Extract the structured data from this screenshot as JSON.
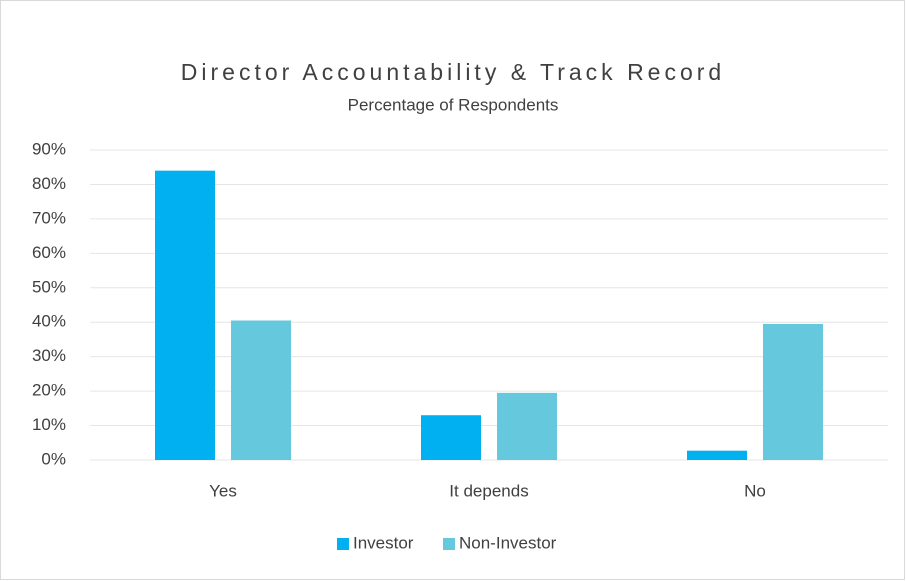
{
  "chart_data": {
    "type": "bar",
    "title": "Director Accountability & Track Record",
    "subtitle": "Percentage of Respondents",
    "categories": [
      "Yes",
      "It depends",
      "No"
    ],
    "series": [
      {
        "name": "Investor",
        "color": "#00b0f0",
        "values": [
          84,
          13,
          2.7
        ]
      },
      {
        "name": "Non-Investor",
        "color": "#66c8dc",
        "values": [
          40.5,
          19.5,
          39.5
        ]
      }
    ],
    "ylim": [
      0,
      90
    ],
    "yticks": [
      {
        "value": 0,
        "label": "0%"
      },
      {
        "value": 10,
        "label": "10%"
      },
      {
        "value": 20,
        "label": "20%"
      },
      {
        "value": 30,
        "label": "30%"
      },
      {
        "value": 40,
        "label": "40%"
      },
      {
        "value": 50,
        "label": "50%"
      },
      {
        "value": 60,
        "label": "60%"
      },
      {
        "value": 70,
        "label": "70%"
      },
      {
        "value": 80,
        "label": "80%"
      },
      {
        "value": 90,
        "label": "90%"
      }
    ],
    "grid": true,
    "legend": "bottom"
  }
}
